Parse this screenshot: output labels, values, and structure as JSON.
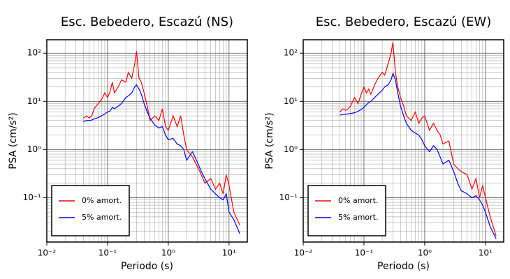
{
  "chart_data": [
    {
      "type": "line",
      "title": "Esc. Bebedero, Escazú (NS)",
      "xlabel": "Periodo (s)",
      "ylabel": "PSA (cm/s²)",
      "log_x": true,
      "log_y": true,
      "grid": true,
      "legend": "lower left",
      "xlim": [
        0.01,
        20
      ],
      "ylim": [
        0.012,
        190
      ],
      "xticks": [
        {
          "value": 0.01,
          "label": "10⁻²"
        },
        {
          "value": 0.1,
          "label": "10⁻¹"
        },
        {
          "value": 1,
          "label": "10⁰"
        },
        {
          "value": 10,
          "label": "10¹"
        }
      ],
      "yticks": [
        {
          "value": 0.1,
          "label": "10⁻¹"
        },
        {
          "value": 1,
          "label": "10⁰"
        },
        {
          "value": 10,
          "label": "10¹"
        },
        {
          "value": 100,
          "label": "10²"
        }
      ],
      "xminor": [
        0.02,
        0.03,
        0.04,
        0.05,
        0.06,
        0.07,
        0.08,
        0.09,
        0.2,
        0.3,
        0.4,
        0.5,
        0.6,
        0.7,
        0.8,
        0.9,
        2,
        3,
        4,
        5,
        6,
        7,
        8,
        9
      ],
      "yminor": [
        0.02,
        0.03,
        0.04,
        0.05,
        0.06,
        0.07,
        0.08,
        0.09,
        0.2,
        0.3,
        0.4,
        0.5,
        0.6,
        0.7,
        0.8,
        0.9,
        2,
        3,
        4,
        5,
        6,
        7,
        8,
        9,
        20,
        30,
        40,
        50,
        60,
        70,
        80,
        90
      ],
      "x": [
        0.04,
        0.045,
        0.05,
        0.055,
        0.06,
        0.07,
        0.08,
        0.09,
        0.1,
        0.11,
        0.12,
        0.13,
        0.15,
        0.17,
        0.2,
        0.22,
        0.25,
        0.28,
        0.3,
        0.33,
        0.36,
        0.4,
        0.45,
        0.5,
        0.6,
        0.7,
        0.8,
        0.9,
        1.0,
        1.2,
        1.4,
        1.6,
        1.8,
        2.0,
        2.5,
        3.0,
        3.5,
        4.0,
        5.0,
        6.0,
        7.0,
        8.0,
        9.0,
        10,
        12,
        15
      ],
      "series": [
        {
          "name": "0% amort.",
          "color": "#ff0000",
          "values": [
            4.5,
            5,
            4.5,
            5,
            7,
            9,
            11,
            15,
            12,
            16,
            25,
            15,
            20,
            28,
            25,
            40,
            30,
            60,
            110,
            30,
            25,
            15,
            8,
            4,
            5,
            4,
            7,
            3,
            2.5,
            5,
            3,
            5,
            2,
            1.0,
            0.7,
            0.45,
            0.3,
            0.2,
            0.25,
            0.15,
            0.2,
            0.12,
            0.3,
            0.18,
            0.05,
            0.027
          ]
        },
        {
          "name": "5% amort.",
          "color": "#0000ff",
          "values": [
            3.8,
            4,
            4,
            4.1,
            4.3,
            4.6,
            5,
            5.5,
            6,
            6.3,
            7.5,
            7,
            8,
            9,
            12,
            13,
            15,
            20,
            22,
            18,
            14,
            9,
            6,
            4.5,
            3.2,
            2.8,
            3,
            2.0,
            1.6,
            1.7,
            1.3,
            1.2,
            1.0,
            0.6,
            0.9,
            0.55,
            0.35,
            0.25,
            0.15,
            0.12,
            0.1,
            0.09,
            0.12,
            0.05,
            0.035,
            0.018
          ]
        }
      ]
    },
    {
      "type": "line",
      "title": "Esc. Bebedero, Escazú (EW)",
      "xlabel": "Periodo (s)",
      "ylabel": "PSA (cm/s²)",
      "log_x": true,
      "log_y": true,
      "grid": true,
      "legend": "lower left",
      "xlim": [
        0.01,
        20
      ],
      "ylim": [
        0.012,
        190
      ],
      "xticks": [
        {
          "value": 0.01,
          "label": "10⁻²"
        },
        {
          "value": 0.1,
          "label": "10⁻¹"
        },
        {
          "value": 1,
          "label": "10⁰"
        },
        {
          "value": 10,
          "label": "10¹"
        }
      ],
      "yticks": [
        {
          "value": 0.1,
          "label": "10⁻¹"
        },
        {
          "value": 1,
          "label": "10⁰"
        },
        {
          "value": 10,
          "label": "10¹"
        },
        {
          "value": 100,
          "label": "10²"
        }
      ],
      "xminor": [
        0.02,
        0.03,
        0.04,
        0.05,
        0.06,
        0.07,
        0.08,
        0.09,
        0.2,
        0.3,
        0.4,
        0.5,
        0.6,
        0.7,
        0.8,
        0.9,
        2,
        3,
        4,
        5,
        6,
        7,
        8,
        9
      ],
      "yminor": [
        0.02,
        0.03,
        0.04,
        0.05,
        0.06,
        0.07,
        0.08,
        0.09,
        0.2,
        0.3,
        0.4,
        0.5,
        0.6,
        0.7,
        0.8,
        0.9,
        2,
        3,
        4,
        5,
        6,
        7,
        8,
        9,
        20,
        30,
        40,
        50,
        60,
        70,
        80,
        90
      ],
      "x": [
        0.04,
        0.045,
        0.05,
        0.055,
        0.06,
        0.07,
        0.08,
        0.09,
        0.1,
        0.11,
        0.12,
        0.13,
        0.15,
        0.17,
        0.2,
        0.22,
        0.25,
        0.28,
        0.3,
        0.33,
        0.36,
        0.4,
        0.45,
        0.5,
        0.6,
        0.7,
        0.8,
        0.9,
        1.0,
        1.2,
        1.4,
        1.6,
        1.8,
        2.0,
        2.5,
        3.0,
        3.5,
        4.0,
        5.0,
        6.0,
        7.0,
        8.0,
        9.0,
        10,
        12,
        15
      ],
      "series": [
        {
          "name": "0% amort.",
          "color": "#ff0000",
          "values": [
            6,
            7,
            6.5,
            7,
            8,
            12,
            9,
            14,
            20,
            15,
            18,
            14,
            22,
            30,
            40,
            35,
            60,
            100,
            170,
            40,
            20,
            12,
            8,
            5,
            4,
            6,
            3.5,
            4.5,
            5,
            2.5,
            3.5,
            2.5,
            2.0,
            1.3,
            1.5,
            0.5,
            0.4,
            0.35,
            0.3,
            0.15,
            0.25,
            0.1,
            0.18,
            0.1,
            0.04,
            0.016
          ]
        },
        {
          "name": "5% amort.",
          "color": "#0000ff",
          "values": [
            5.2,
            5.3,
            5.4,
            5.5,
            5.6,
            5.8,
            6.2,
            6.8,
            7.5,
            8.5,
            9.5,
            10,
            12,
            14,
            17,
            20,
            22,
            28,
            38,
            28,
            15,
            8,
            5,
            3.5,
            2.5,
            2.2,
            2.0,
            1.6,
            1.2,
            0.9,
            1.2,
            1.0,
            0.7,
            0.5,
            0.6,
            0.35,
            0.2,
            0.14,
            0.12,
            0.1,
            0.11,
            0.09,
            0.07,
            0.05,
            0.025,
            0.014
          ]
        }
      ]
    }
  ]
}
